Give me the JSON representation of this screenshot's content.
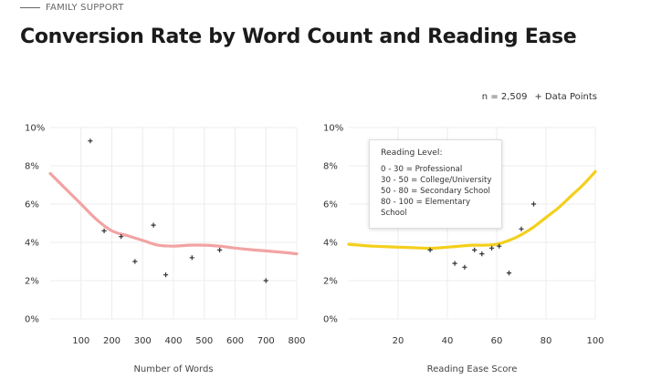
{
  "header": {
    "kicker": "FAMILY SUPPORT",
    "title": "Conversion Rate by Word Count and Reading Ease"
  },
  "meta": {
    "sample": "n = 2,509",
    "points_label": "Data Points",
    "points_glyph": "+"
  },
  "reading_legend": {
    "heading": "Reading Level:",
    "items": [
      "0 - 30 = Professional",
      "30 - 50 = College/University",
      "50 - 80 = Secondary School",
      "80 - 100 = Elementary School"
    ]
  },
  "colors": {
    "words_line": "#f2a3a3",
    "ease_line": "#f4cf1c",
    "points": "#333333",
    "grid": "#ececec"
  },
  "chart_data": [
    {
      "type": "scatter",
      "xlabel": "Number of Words",
      "ylabel": "",
      "xlim": [
        0,
        800
      ],
      "ylim": [
        0,
        10
      ],
      "xticks": [
        100,
        200,
        300,
        400,
        500,
        600,
        700,
        800
      ],
      "yticks": [
        0,
        2,
        4,
        6,
        8,
        10
      ],
      "ytick_labels": [
        "0%",
        "2%",
        "4%",
        "6%",
        "8%",
        "10%"
      ],
      "grid": true,
      "trend": {
        "x": [
          0,
          50,
          100,
          150,
          200,
          250,
          300,
          350,
          400,
          450,
          500,
          550,
          600,
          650,
          700,
          750,
          800
        ],
        "y": [
          7.6,
          6.8,
          6.0,
          5.2,
          4.6,
          4.35,
          4.1,
          3.85,
          3.8,
          3.85,
          3.85,
          3.8,
          3.7,
          3.62,
          3.55,
          3.48,
          3.4
        ]
      },
      "points": {
        "x": [
          130,
          175,
          230,
          275,
          335,
          375,
          460,
          550,
          700
        ],
        "y": [
          9.3,
          4.6,
          4.3,
          3.0,
          4.9,
          2.3,
          3.2,
          3.6,
          2.0
        ]
      }
    },
    {
      "type": "scatter",
      "xlabel": "Reading Ease Score",
      "ylabel": "",
      "xlim": [
        0,
        100
      ],
      "ylim": [
        0,
        10
      ],
      "xticks": [
        20,
        40,
        60,
        80,
        100
      ],
      "yticks": [
        0,
        2,
        4,
        6,
        8,
        10
      ],
      "ytick_labels": [
        "0%",
        "2%",
        "4%",
        "6%",
        "8%",
        "10%"
      ],
      "grid": true,
      "trend": {
        "x": [
          0,
          10,
          20,
          30,
          35,
          40,
          45,
          50,
          55,
          60,
          65,
          70,
          75,
          80,
          85,
          90,
          95,
          100
        ],
        "y": [
          3.9,
          3.8,
          3.75,
          3.7,
          3.7,
          3.75,
          3.8,
          3.85,
          3.85,
          3.9,
          4.1,
          4.4,
          4.8,
          5.3,
          5.8,
          6.4,
          7.0,
          7.7
        ]
      },
      "points": {
        "x": [
          33,
          43,
          47,
          51,
          54,
          58,
          61,
          65,
          70,
          75
        ],
        "y": [
          3.6,
          2.9,
          2.7,
          3.6,
          3.4,
          3.7,
          3.8,
          2.4,
          4.7,
          6.0
        ]
      }
    }
  ]
}
